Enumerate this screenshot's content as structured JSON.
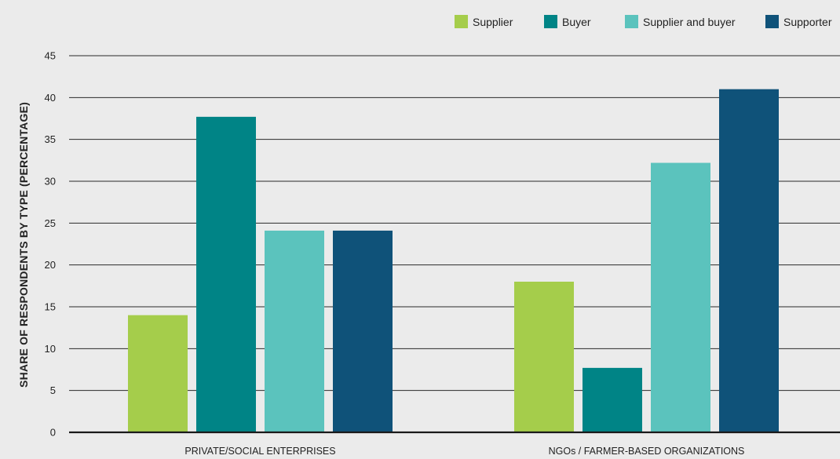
{
  "chart_data": {
    "type": "bar",
    "title": "",
    "xlabel": "",
    "ylabel": "SHARE OF RESPONDENTS BY TYPE (PERCENTAGE)",
    "categories": [
      "PRIVATE/SOCIAL ENTERPRISES",
      "NGOs / FARMER-BASED ORGANIZATIONS"
    ],
    "series": [
      {
        "name": "Supplier",
        "color": "#a5cd4b",
        "values": [
          14,
          18
        ]
      },
      {
        "name": "Buyer",
        "color": "#008486",
        "values": [
          37.7,
          7.7
        ]
      },
      {
        "name": "Supplier and buyer",
        "color": "#5bc3bd",
        "values": [
          24.1,
          32.2
        ]
      },
      {
        "name": "Supporter",
        "color": "#0f5279",
        "values": [
          24.1,
          41
        ]
      }
    ],
    "ylim": [
      0,
      45
    ],
    "yticks": [
      0,
      5,
      10,
      15,
      20,
      25,
      30,
      35,
      40,
      45
    ],
    "grid": true,
    "legend": "top-right"
  }
}
